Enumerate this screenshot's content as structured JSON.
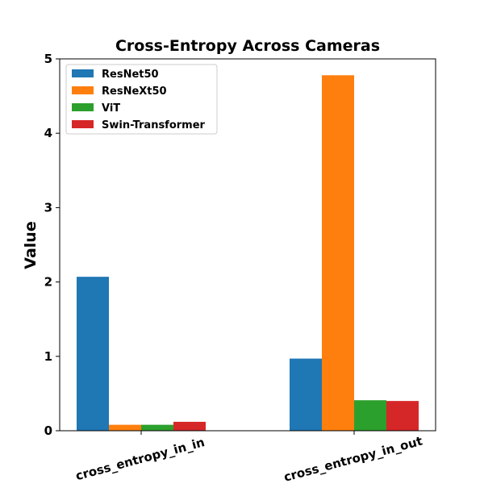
{
  "chart_data": {
    "type": "bar",
    "title": "Cross-Entropy Across Cameras",
    "xlabel": "",
    "ylabel": "Value",
    "categories": [
      "cross_entropy_in_in",
      "cross_entropy_in_out"
    ],
    "series": [
      {
        "name": "ResNet50",
        "color": "#1f77b4",
        "values": [
          2.07,
          0.97
        ]
      },
      {
        "name": "ResNeXt50",
        "color": "#ff7f0e",
        "values": [
          0.08,
          4.78
        ]
      },
      {
        "name": "ViT",
        "color": "#2ca02c",
        "values": [
          0.08,
          0.41
        ]
      },
      {
        "name": "Swin-Transformer",
        "color": "#d62728",
        "values": [
          0.12,
          0.4
        ]
      }
    ],
    "ylim": [
      0,
      5.0
    ],
    "yticks": [
      "0",
      "1",
      "2",
      "3",
      "4",
      "5"
    ],
    "grid": false,
    "legend_position": "top-left"
  }
}
